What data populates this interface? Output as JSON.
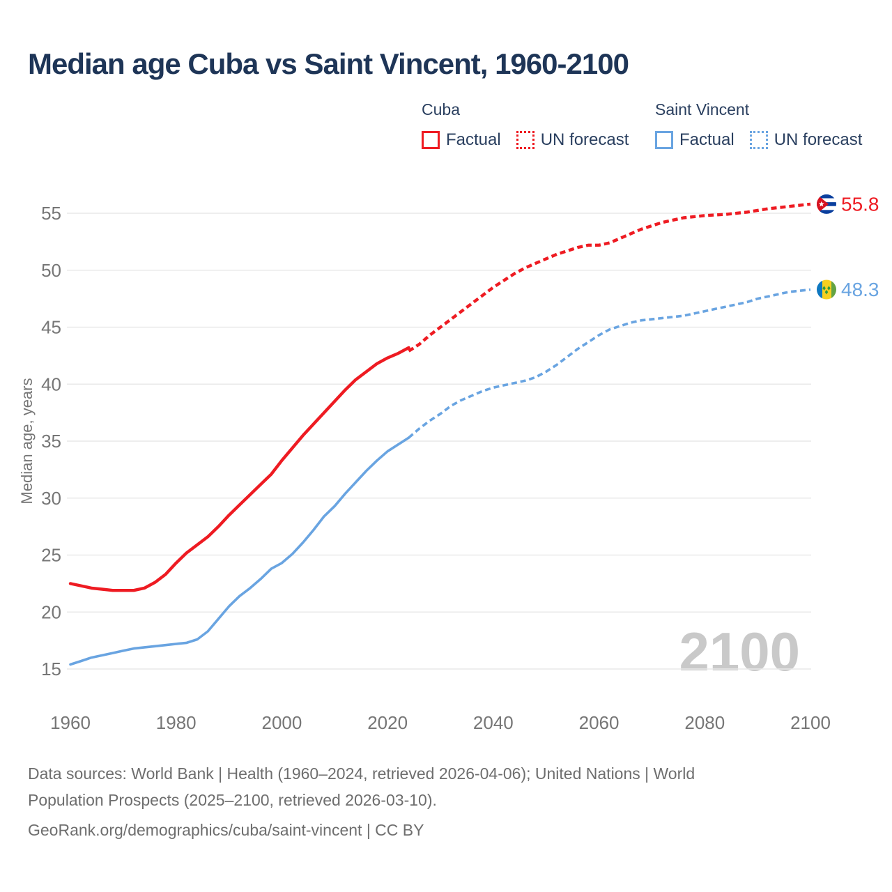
{
  "title": "Median age Cuba vs Saint Vincent, 1960-2100",
  "legend": {
    "groups": [
      {
        "name": "Cuba",
        "color": "#ee1b22",
        "items": [
          {
            "label": "Factual",
            "style": "solid"
          },
          {
            "label": "UN forecast",
            "style": "dotted"
          }
        ]
      },
      {
        "name": "Saint Vincent",
        "color": "#69a4e1",
        "items": [
          {
            "label": "Factual",
            "style": "solid"
          },
          {
            "label": "UN forecast",
            "style": "dotted"
          }
        ]
      }
    ]
  },
  "chart_data": {
    "type": "line",
    "title": "Median age Cuba vs Saint Vincent, 1960-2100",
    "xlabel": "",
    "ylabel": "Median age, years",
    "x_ticks": [
      1960,
      1980,
      2000,
      2020,
      2040,
      2060,
      2080,
      2100
    ],
    "y_ticks": [
      15,
      20,
      25,
      30,
      35,
      40,
      45,
      50,
      55
    ],
    "xlim": [
      1960,
      2100
    ],
    "ylim": [
      15,
      55
    ],
    "grid": "horizontal",
    "legend_position": "top-right",
    "watermark": "2100",
    "series": [
      {
        "name": "Cuba — Factual",
        "color": "#ee1b22",
        "dash": "solid",
        "points": [
          [
            1960,
            22.5
          ],
          [
            1962,
            22.3
          ],
          [
            1964,
            22.1
          ],
          [
            1966,
            22.0
          ],
          [
            1968,
            21.9
          ],
          [
            1970,
            21.9
          ],
          [
            1972,
            21.9
          ],
          [
            1974,
            22.1
          ],
          [
            1976,
            22.6
          ],
          [
            1978,
            23.3
          ],
          [
            1980,
            24.3
          ],
          [
            1982,
            25.2
          ],
          [
            1984,
            25.9
          ],
          [
            1986,
            26.6
          ],
          [
            1988,
            27.5
          ],
          [
            1990,
            28.5
          ],
          [
            1992,
            29.4
          ],
          [
            1994,
            30.3
          ],
          [
            1996,
            31.2
          ],
          [
            1998,
            32.1
          ],
          [
            2000,
            33.3
          ],
          [
            2002,
            34.4
          ],
          [
            2004,
            35.5
          ],
          [
            2006,
            36.5
          ],
          [
            2008,
            37.5
          ],
          [
            2010,
            38.5
          ],
          [
            2012,
            39.5
          ],
          [
            2014,
            40.4
          ],
          [
            2016,
            41.1
          ],
          [
            2018,
            41.8
          ],
          [
            2020,
            42.3
          ],
          [
            2022,
            42.7
          ],
          [
            2024,
            43.2
          ]
        ]
      },
      {
        "name": "Cuba — UN forecast",
        "color": "#ee1b22",
        "dash": "dashed",
        "points": [
          [
            2024,
            42.9
          ],
          [
            2026,
            43.5
          ],
          [
            2028,
            44.3
          ],
          [
            2030,
            45.0
          ],
          [
            2032,
            45.7
          ],
          [
            2034,
            46.4
          ],
          [
            2036,
            47.1
          ],
          [
            2038,
            47.8
          ],
          [
            2040,
            48.5
          ],
          [
            2042,
            49.1
          ],
          [
            2044,
            49.7
          ],
          [
            2046,
            50.2
          ],
          [
            2048,
            50.6
          ],
          [
            2050,
            51.0
          ],
          [
            2052,
            51.4
          ],
          [
            2054,
            51.7
          ],
          [
            2056,
            52.0
          ],
          [
            2058,
            52.2
          ],
          [
            2060,
            52.2
          ],
          [
            2062,
            52.4
          ],
          [
            2064,
            52.8
          ],
          [
            2066,
            53.2
          ],
          [
            2068,
            53.6
          ],
          [
            2070,
            53.9
          ],
          [
            2072,
            54.2
          ],
          [
            2074,
            54.4
          ],
          [
            2076,
            54.6
          ],
          [
            2078,
            54.7
          ],
          [
            2080,
            54.8
          ],
          [
            2084,
            54.9
          ],
          [
            2088,
            55.1
          ],
          [
            2092,
            55.4
          ],
          [
            2096,
            55.6
          ],
          [
            2100,
            55.8
          ]
        ]
      },
      {
        "name": "Saint Vincent — Factual",
        "color": "#69a4e1",
        "dash": "solid",
        "points": [
          [
            1960,
            15.4
          ],
          [
            1962,
            15.7
          ],
          [
            1964,
            16.0
          ],
          [
            1966,
            16.2
          ],
          [
            1968,
            16.4
          ],
          [
            1970,
            16.6
          ],
          [
            1972,
            16.8
          ],
          [
            1974,
            16.9
          ],
          [
            1976,
            17.0
          ],
          [
            1978,
            17.1
          ],
          [
            1980,
            17.2
          ],
          [
            1982,
            17.3
          ],
          [
            1984,
            17.6
          ],
          [
            1986,
            18.3
          ],
          [
            1988,
            19.4
          ],
          [
            1990,
            20.5
          ],
          [
            1992,
            21.4
          ],
          [
            1994,
            22.1
          ],
          [
            1996,
            22.9
          ],
          [
            1998,
            23.8
          ],
          [
            2000,
            24.3
          ],
          [
            2002,
            25.1
          ],
          [
            2004,
            26.1
          ],
          [
            2006,
            27.2
          ],
          [
            2008,
            28.4
          ],
          [
            2010,
            29.3
          ],
          [
            2012,
            30.4
          ],
          [
            2014,
            31.4
          ],
          [
            2016,
            32.4
          ],
          [
            2018,
            33.3
          ],
          [
            2020,
            34.1
          ],
          [
            2022,
            34.7
          ],
          [
            2024,
            35.3
          ]
        ]
      },
      {
        "name": "Saint Vincent — UN forecast",
        "color": "#69a4e1",
        "dash": "dashed",
        "points": [
          [
            2024,
            35.3
          ],
          [
            2026,
            36.1
          ],
          [
            2028,
            36.8
          ],
          [
            2030,
            37.4
          ],
          [
            2032,
            38.1
          ],
          [
            2034,
            38.6
          ],
          [
            2036,
            39.0
          ],
          [
            2038,
            39.4
          ],
          [
            2040,
            39.7
          ],
          [
            2042,
            39.9
          ],
          [
            2044,
            40.1
          ],
          [
            2046,
            40.3
          ],
          [
            2048,
            40.6
          ],
          [
            2050,
            41.1
          ],
          [
            2052,
            41.7
          ],
          [
            2054,
            42.4
          ],
          [
            2056,
            43.1
          ],
          [
            2058,
            43.7
          ],
          [
            2060,
            44.3
          ],
          [
            2062,
            44.8
          ],
          [
            2064,
            45.1
          ],
          [
            2066,
            45.4
          ],
          [
            2068,
            45.6
          ],
          [
            2070,
            45.7
          ],
          [
            2072,
            45.8
          ],
          [
            2074,
            45.9
          ],
          [
            2076,
            46.0
          ],
          [
            2078,
            46.2
          ],
          [
            2080,
            46.4
          ],
          [
            2082,
            46.6
          ],
          [
            2084,
            46.8
          ],
          [
            2086,
            47.0
          ],
          [
            2088,
            47.2
          ],
          [
            2090,
            47.5
          ],
          [
            2092,
            47.7
          ],
          [
            2094,
            47.9
          ],
          [
            2096,
            48.1
          ],
          [
            2098,
            48.2
          ],
          [
            2100,
            48.3
          ]
        ]
      }
    ],
    "end_labels": [
      {
        "series": "Cuba",
        "value": "55.8",
        "color": "#ee1b22",
        "flag": "cuba"
      },
      {
        "series": "Saint Vincent",
        "value": "48.3",
        "color": "#69a4e1",
        "flag": "saint-vincent"
      }
    ]
  },
  "footer": {
    "lines": [
      "Data sources: World Bank | Health (1960–2024, retrieved 2026-04-06); United Nations | World",
      "Population Prospects (2025–2100, retrieved 2026-03-10).",
      "GeoRank.org/demographics/cuba/saint-vincent | CC BY"
    ]
  },
  "colors": {
    "title": "#1e3557",
    "legend_text": "#2a3f5f",
    "axis_text": "#767676",
    "gridline": "#e9e9e9",
    "watermark": "#c9c9c9",
    "cuba": "#ee1b22",
    "saint_vincent": "#69a4e1",
    "footer_text": "#6e6e6e"
  }
}
